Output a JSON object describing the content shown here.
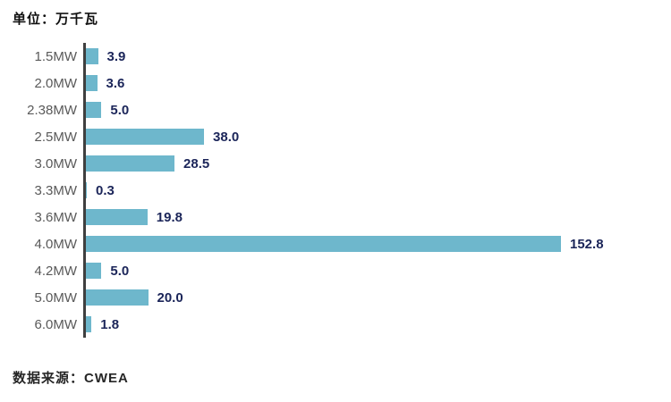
{
  "header": {
    "unit_label": "单位：万千瓦"
  },
  "footer": {
    "source_label": "数据来源：CWEA"
  },
  "chart_data": {
    "type": "bar",
    "orientation": "horizontal",
    "title": "单位：万千瓦",
    "xlabel": "",
    "ylabel": "",
    "categories": [
      "1.5MW",
      "2.0MW",
      "2.38MW",
      "2.5MW",
      "3.0MW",
      "3.3MW",
      "3.6MW",
      "4.0MW",
      "4.2MW",
      "5.0MW",
      "6.0MW"
    ],
    "values": [
      3.9,
      3.6,
      5.0,
      38.0,
      28.5,
      0.3,
      19.8,
      152.8,
      5.0,
      20.0,
      1.8
    ],
    "value_labels": [
      "3.9",
      "3.6",
      "5.0",
      "38.0",
      "28.5",
      "0.3",
      "19.8",
      "152.8",
      "5.0",
      "20.0",
      "1.8"
    ],
    "max_value": 152.8,
    "xlim": [
      0,
      160
    ],
    "grid": false,
    "legend": false,
    "value_label_position": "end-of-bar",
    "source": "数据来源：CWEA",
    "colors": {
      "bar": "#6eb7cc",
      "value_label": "#1b2559",
      "category_label": "#595959",
      "axis": "#3f3f3f",
      "background": "#ffffff"
    }
  }
}
